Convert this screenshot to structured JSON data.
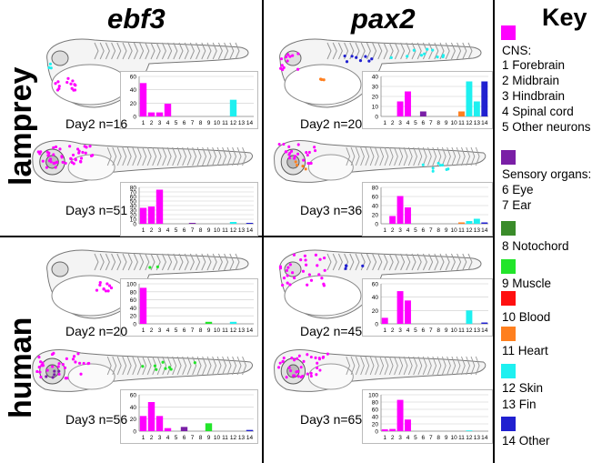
{
  "columns": [
    "ebf3",
    "pax2"
  ],
  "rows": [
    "lamprey",
    "human"
  ],
  "key": {
    "title": "Key",
    "groups": [
      {
        "color": "#ff00ff",
        "lines": [
          "CNS:",
          "1 Forebrain",
          "2 Midbrain",
          "3 Hindbrain",
          "4 Spinal cord",
          "5 Other neurons"
        ]
      },
      {
        "color": "#7a1fa6",
        "lines": [
          "Sensory organs:",
          "6 Eye",
          "7 Ear"
        ]
      },
      {
        "color": "#3a8c2a",
        "lines": [
          "8 Notochord"
        ]
      },
      {
        "color": "#22e52a",
        "lines": [
          "9 Muscle"
        ]
      },
      {
        "color": "#ff1010",
        "lines": [
          "10 Blood"
        ]
      },
      {
        "color": "#ff7f1e",
        "lines": [
          "11 Heart"
        ]
      },
      {
        "color": "#1ef0f0",
        "lines": [
          "12 Skin",
          "13 Fin"
        ]
      },
      {
        "color": "#2020d0",
        "lines": [
          "14 Other"
        ]
      }
    ]
  },
  "bar_colors": [
    "#ff00ff",
    "#ff00ff",
    "#ff00ff",
    "#ff00ff",
    "#ff00ff",
    "#7a1fa6",
    "#7a1fa6",
    "#3a8c2a",
    "#22e52a",
    "#ff1010",
    "#ff7f1e",
    "#1ef0f0",
    "#1ef0f0",
    "#2020d0"
  ],
  "panels": [
    {
      "label": "Day2 n=16"
    },
    {
      "label": "Day3 n=51"
    },
    {
      "label": "Day2 n=20"
    },
    {
      "label": "Day3 n=36"
    },
    {
      "label": "Day2 n=20"
    },
    {
      "label": "Day3 n=56"
    },
    {
      "label": "Day2 n=45"
    },
    {
      "label": "Day3 n=65"
    }
  ],
  "chart_data": [
    {
      "type": "bar",
      "title": "lamprey ebf3 Day2 n=16",
      "categories": [
        "1",
        "2",
        "3",
        "4",
        "5",
        "6",
        "7",
        "8",
        "9",
        "10",
        "11",
        "12",
        "13",
        "14"
      ],
      "values": [
        50,
        6,
        6,
        19,
        0,
        0,
        0,
        0,
        0,
        0,
        0,
        25,
        0,
        0
      ],
      "ylim": [
        0,
        60
      ],
      "yticks": [
        0,
        20,
        40,
        60
      ]
    },
    {
      "type": "bar",
      "title": "lamprey ebf3 Day3 n=51",
      "categories": [
        "1",
        "2",
        "3",
        "4",
        "5",
        "6",
        "7",
        "8",
        "9",
        "10",
        "11",
        "12",
        "13",
        "14"
      ],
      "values": [
        35,
        38,
        75,
        0,
        0,
        0,
        2,
        0,
        0,
        0,
        0,
        4,
        0,
        2
      ],
      "ylim": [
        0,
        80
      ],
      "yticks": [
        0,
        10,
        20,
        30,
        40,
        50,
        60,
        70,
        80
      ]
    },
    {
      "type": "bar",
      "title": "lamprey pax2 Day2 n=20",
      "categories": [
        "1",
        "2",
        "3",
        "4",
        "5",
        "6",
        "7",
        "8",
        "9",
        "10",
        "11",
        "12",
        "13",
        "14"
      ],
      "values": [
        0,
        0,
        15,
        25,
        0,
        5,
        0,
        0,
        0,
        0,
        5,
        35,
        15,
        35
      ],
      "ylim": [
        0,
        40
      ],
      "yticks": [
        0,
        10,
        20,
        30,
        40
      ]
    },
    {
      "type": "bar",
      "title": "lamprey pax2 Day3 n=36",
      "categories": [
        "1",
        "2",
        "3",
        "4",
        "5",
        "6",
        "7",
        "8",
        "9",
        "10",
        "11",
        "12",
        "13",
        "14"
      ],
      "values": [
        0,
        17,
        61,
        36,
        0,
        0,
        0,
        0,
        0,
        0,
        3,
        6,
        11,
        3
      ],
      "ylim": [
        0,
        80
      ],
      "yticks": [
        0,
        20,
        40,
        60,
        80
      ]
    },
    {
      "type": "bar",
      "title": "human ebf3 Day2 n=20",
      "categories": [
        "1",
        "2",
        "3",
        "4",
        "5",
        "6",
        "7",
        "8",
        "9",
        "10",
        "11",
        "12",
        "13",
        "14"
      ],
      "values": [
        90,
        0,
        0,
        0,
        0,
        0,
        0,
        0,
        5,
        0,
        0,
        5,
        0,
        0
      ],
      "ylim": [
        0,
        100
      ],
      "yticks": [
        0,
        20,
        40,
        60,
        80,
        100
      ]
    },
    {
      "type": "bar",
      "title": "human ebf3 Day3 n=56",
      "categories": [
        "1",
        "2",
        "3",
        "4",
        "5",
        "6",
        "7",
        "8",
        "9",
        "10",
        "11",
        "12",
        "13",
        "14"
      ],
      "values": [
        25,
        48,
        25,
        5,
        0,
        7,
        0,
        0,
        13,
        0,
        0,
        0,
        0,
        2
      ],
      "ylim": [
        0,
        60
      ],
      "yticks": [
        0,
        20,
        40,
        60
      ]
    },
    {
      "type": "bar",
      "title": "human pax2 Day2 n=45",
      "categories": [
        "1",
        "2",
        "3",
        "4",
        "5",
        "6",
        "7",
        "8",
        "9",
        "10",
        "11",
        "12",
        "13",
        "14"
      ],
      "values": [
        9,
        0,
        49,
        35,
        0,
        0,
        0,
        0,
        0,
        0,
        0,
        20,
        0,
        2
      ],
      "ylim": [
        0,
        60
      ],
      "yticks": [
        0,
        20,
        40,
        60
      ]
    },
    {
      "type": "bar",
      "title": "human pax2 Day3 n=65",
      "categories": [
        "1",
        "2",
        "3",
        "4",
        "5",
        "6",
        "7",
        "8",
        "9",
        "10",
        "11",
        "12",
        "13",
        "14"
      ],
      "values": [
        5,
        6,
        86,
        32,
        0,
        0,
        0,
        0,
        0,
        0,
        0,
        2,
        0,
        0
      ],
      "ylim": [
        0,
        100
      ],
      "yticks": [
        0,
        20,
        40,
        60,
        80,
        100
      ]
    }
  ]
}
